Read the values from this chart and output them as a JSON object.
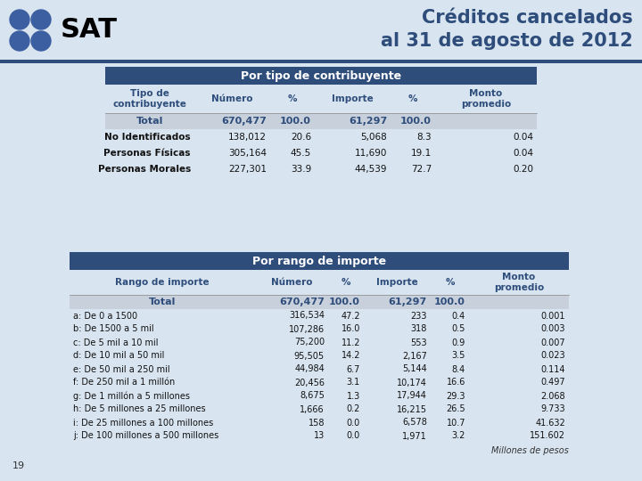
{
  "title_line1": "Créditos cancelados",
  "title_line2": "al 31 de agosto de 2012",
  "title_color": "#2E4D7B",
  "bg_color": "#D8E4F0",
  "header_bg": "#2E4D7B",
  "header_fg": "#FFFFFF",
  "total_bg": "#C8D0DC",
  "table1_header": "Por tipo de contribuyente",
  "table1_col_headers": [
    "Tipo de\ncontribuyente",
    "Número",
    "%",
    "Importe",
    "%",
    "Monto\npromedio"
  ],
  "table1_total": [
    "Total",
    "670,477",
    "100.0",
    "61,297",
    "100.0",
    ""
  ],
  "table1_rows": [
    [
      "No Identificados",
      "138,012",
      "20.6",
      "5,068",
      "8.3",
      "0.04"
    ],
    [
      "Personas Físicas",
      "305,164",
      "45.5",
      "11,690",
      "19.1",
      "0.04"
    ],
    [
      "Personas Morales",
      "227,301",
      "33.9",
      "44,539",
      "72.7",
      "0.20"
    ]
  ],
  "table2_header": "Por rango de importe",
  "table2_col_headers": [
    "Rango de importe",
    "Número",
    "%",
    "Importe",
    "%",
    "Monto\npromedio"
  ],
  "table2_total": [
    "Total",
    "670,477",
    "100.0",
    "61,297",
    "100.0",
    ""
  ],
  "table2_rows": [
    [
      "a: De 0 a 1500",
      "316,534",
      "47.2",
      "233",
      "0.4",
      "0.001"
    ],
    [
      "b: De 1500 a 5 mil",
      "107,286",
      "16.0",
      "318",
      "0.5",
      "0.003"
    ],
    [
      "c: De 5 mil a 10 mil",
      "75,200",
      "11.2",
      "553",
      "0.9",
      "0.007"
    ],
    [
      "d: De 10 mil a 50 mil",
      "95,505",
      "14.2",
      "2,167",
      "3.5",
      "0.023"
    ],
    [
      "e: De 50 mil a 250 mil",
      "44,984",
      "6.7",
      "5,144",
      "8.4",
      "0.114"
    ],
    [
      "f: De 250 mil a 1 millón",
      "20,456",
      "3.1",
      "10,174",
      "16.6",
      "0.497"
    ],
    [
      "g: De 1 millón a 5 millones",
      "8,675",
      "1.3",
      "17,944",
      "29.3",
      "2.068"
    ],
    [
      "h: De 5 millones a 25 millones",
      "1,666",
      "0.2",
      "16,215",
      "26.5",
      "9.733"
    ],
    [
      "i: De 25 millones a 100 millones",
      "158",
      "0.0",
      "6,578",
      "10.7",
      "41.632"
    ],
    [
      "j: De 100 millones a 500 millones",
      "13",
      "0.0",
      "1,971",
      "3.2",
      "151.602"
    ]
  ],
  "footnote": "Millones de pesos",
  "page_number": "19",
  "dot_color": "#3B5FA0",
  "sat_text_color": "#000000",
  "line_color": "#2E4D7B"
}
